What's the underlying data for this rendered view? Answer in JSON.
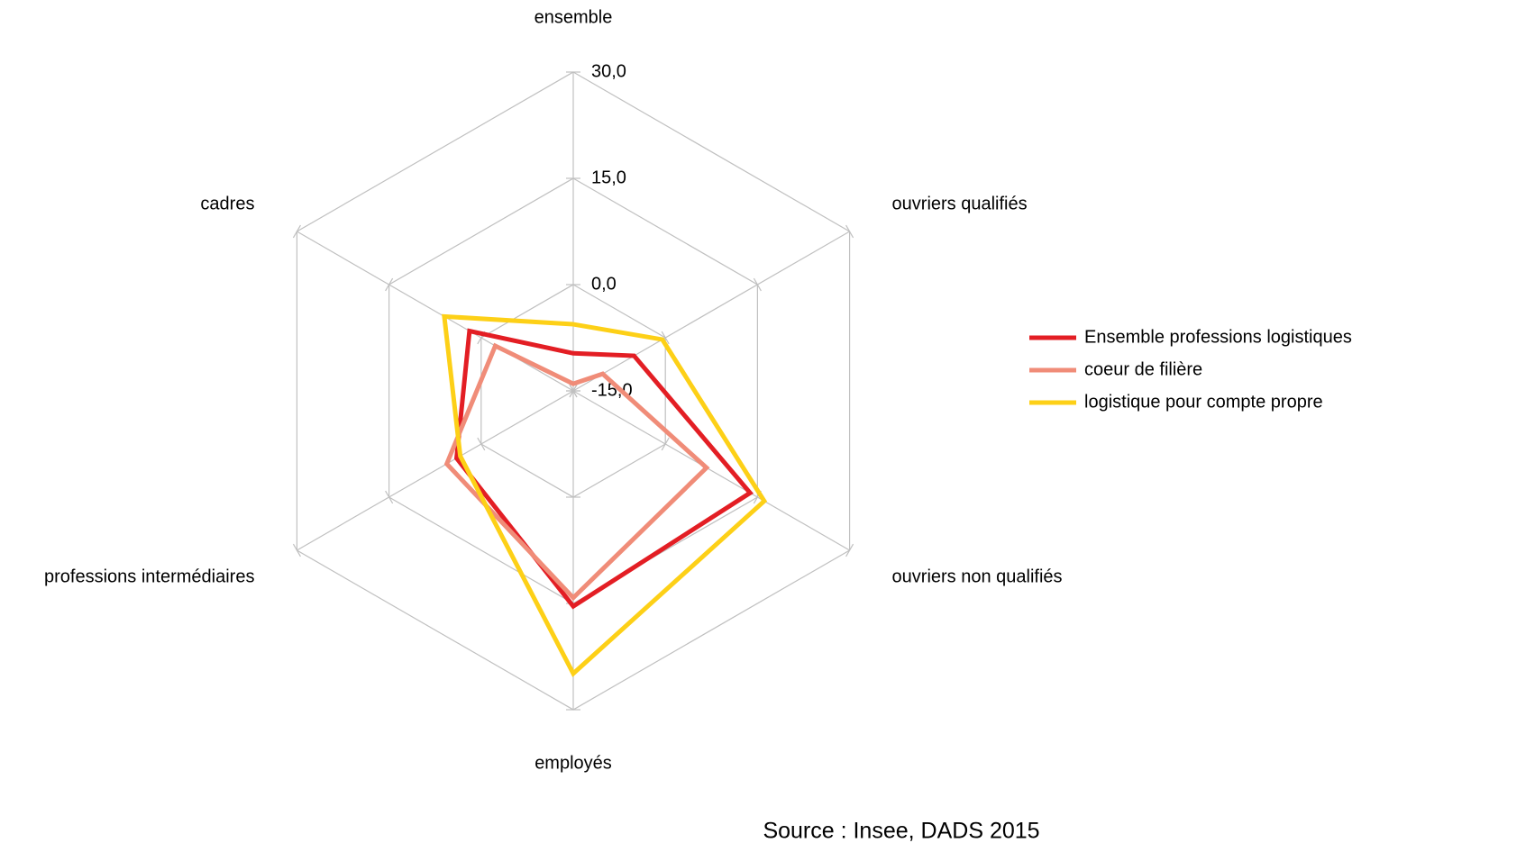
{
  "chart_data": {
    "type": "radar",
    "categories": [
      "ensemble",
      "ouvriers qualifiés",
      "ouvriers non qualifiés",
      "employés",
      "professions intermédiaires",
      "cadres"
    ],
    "series": [
      {
        "name": "Ensemble professions logistiques",
        "color": "#e31e24",
        "values": [
          -9.7,
          -5.1,
          13.8,
          15.4,
          4,
          1.9
        ]
      },
      {
        "name": "coeur de filière",
        "color": "#f08c78",
        "values": [
          -14,
          -10.2,
          6.7,
          14.2,
          5.6,
          -2.3
        ]
      },
      {
        "name": "logistique pour compte propre",
        "color": "#fdd017",
        "values": [
          -5.6,
          -0.5,
          16.1,
          24.9,
          3.4,
          6
        ]
      }
    ],
    "ylim": [
      -15,
      30
    ],
    "yticks": [
      {
        "value": -15,
        "label": "-15,0"
      },
      {
        "value": 0,
        "label": "0,0"
      },
      {
        "value": 15,
        "label": "15,0"
      },
      {
        "value": 30,
        "label": "30,0"
      }
    ],
    "legend": "right",
    "annotations": [
      "Source : Insee, DADS 2015"
    ]
  }
}
